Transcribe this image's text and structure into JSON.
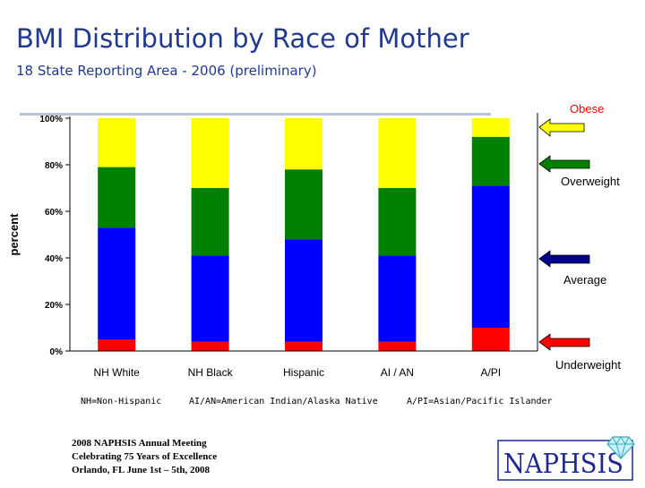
{
  "header": {
    "title": "BMI Distribution by Race of Mother",
    "subtitle": "18 State Reporting Area - 2006 (preliminary)"
  },
  "chart_data": {
    "type": "bar",
    "stacked": true,
    "categories": [
      "NH White",
      "NH Black",
      "Hispanic",
      "AI / AN",
      "A/PI"
    ],
    "series": [
      {
        "name": "Underweight",
        "color": "#ff0000",
        "values": [
          5,
          4,
          4,
          4,
          10
        ]
      },
      {
        "name": "Average",
        "color": "#0000ff",
        "values": [
          48,
          37,
          44,
          37,
          61
        ]
      },
      {
        "name": "Overweight",
        "color": "#008000",
        "values": [
          26,
          29,
          30,
          29,
          21
        ]
      },
      {
        "name": "Obese",
        "color": "#ffff00",
        "values": [
          21,
          30,
          22,
          30,
          8
        ]
      }
    ],
    "ylim": [
      0,
      100
    ],
    "y_ticks": [
      "0%",
      "20%",
      "40%",
      "60%",
      "80%",
      "100%"
    ],
    "ylabel": "percent",
    "grid": false,
    "legend_position": "right"
  },
  "legend": {
    "obese": "Obese",
    "overweight": "Overweight",
    "average": "Average",
    "underweight": "Underweight"
  },
  "notes": {
    "nh": "NH=Non-Hispanic",
    "aian": "AI/AN=American Indian/Alaska Native",
    "api": "A/PI=Asian/Pacific Islander"
  },
  "footer": {
    "line1": "2008 NAPHSIS Annual Meeting",
    "line2": "Celebrating 75 Years of Excellence",
    "line3": "Orlando, FL      June 1st – 5th, 2008"
  },
  "logo": {
    "text": "NAPHSIS",
    "icon": "diamond-icon",
    "color": "#1f2a8f"
  }
}
